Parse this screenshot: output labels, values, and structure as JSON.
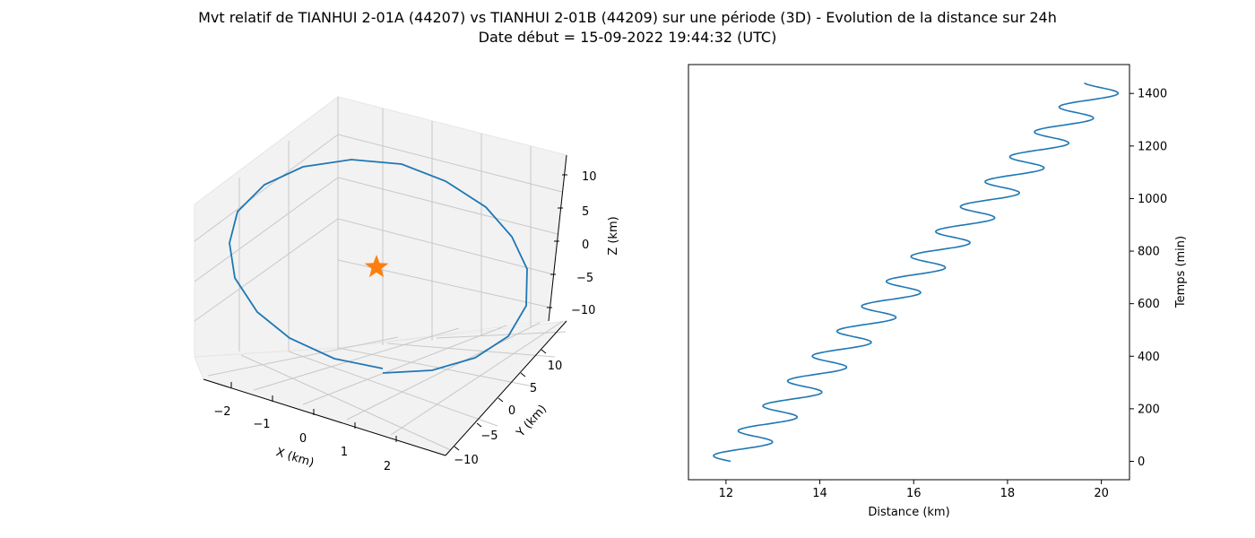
{
  "figure": {
    "title_line1": "Mvt relatif de TIANHUI 2-01A (44207) vs TIANHUI 2-01B (44209) sur une période (3D) - Evolution de la distance sur 24h",
    "title_line2": "Date début = 15-09-2022 19:44:32 (UTC)",
    "series_color": "#1f77b4",
    "marker_color": "#ff7f0e",
    "pane_color": "#f2f2f2",
    "grid_color": "#c8c8c8"
  },
  "chart_data": [
    {
      "type": "line",
      "projection": "3d",
      "xlabel": "X (km)",
      "ylabel": "Y (km)",
      "zlabel": "Z (km)",
      "xticks": [
        "−2",
        "−1",
        "0",
        "1",
        "2"
      ],
      "yticks": [
        "−10",
        "−5",
        "0",
        "5",
        "10"
      ],
      "zticks": [
        "10",
        "5",
        "0",
        "−5",
        "−10"
      ],
      "grid": true,
      "trajectory_shape": "closed relative-motion ellipse, about 2.4 km amplitude in X and 12 km in Y and Z",
      "origin_marker": "star"
    },
    {
      "type": "line",
      "xlabel": "Distance (km)",
      "ylabel": "Temps (min)",
      "yaxis_side": "right",
      "xlim": [
        11.2,
        20.6
      ],
      "ylim": [
        -70,
        1510
      ],
      "xticks": [
        12,
        14,
        16,
        18,
        20
      ],
      "yticks": [
        0,
        200,
        400,
        600,
        800,
        1000,
        1200,
        1400
      ],
      "grid": false,
      "series": [
        {
          "drift_km_per_min": 0.00555,
          "start_distance_km": 12.1,
          "oscillation_amplitude_km": 0.49,
          "period_min": 94.8,
          "time_min": [
            0,
            1440
          ]
        }
      ]
    }
  ]
}
